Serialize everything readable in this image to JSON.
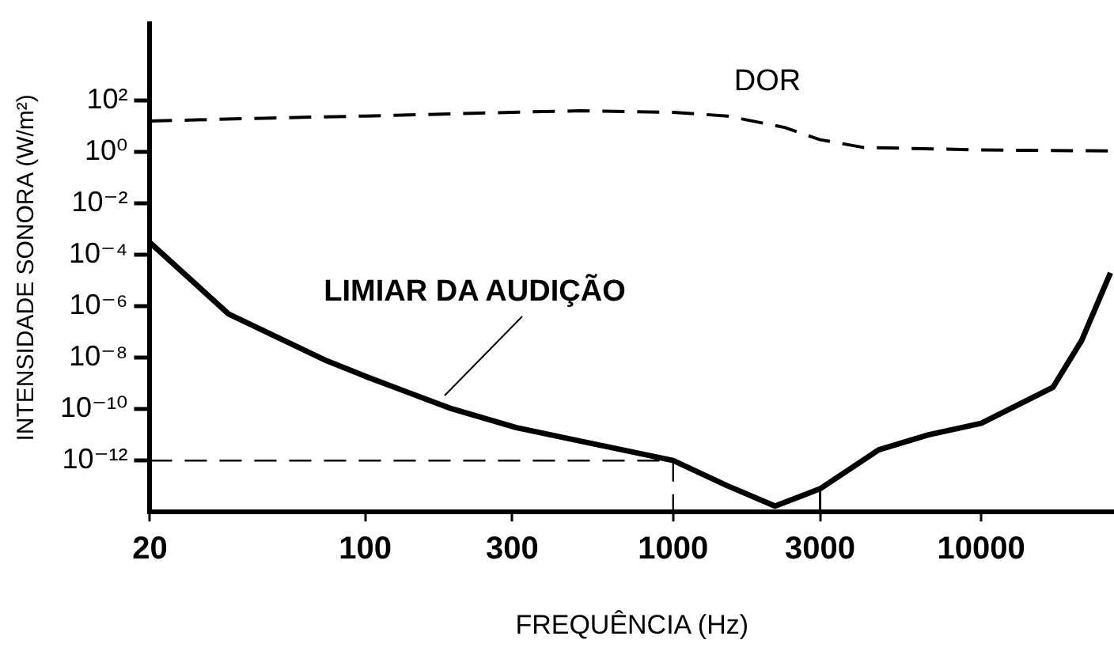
{
  "chart_data": {
    "type": "line",
    "xlabel": "FREQUÊNCIA (Hz)",
    "ylabel": "INTENSIDADE SONORA (W/m²)",
    "log": "xy",
    "grid": false,
    "legend": false,
    "marker": "none",
    "xlim": [
      20,
      27000
    ],
    "xticks": [
      20,
      100,
      300,
      1000,
      3000,
      10000
    ],
    "ylim": [
      1e-14,
      100000
    ],
    "yticks": [
      {
        "value": 1e-12,
        "label": "10⁻¹²"
      },
      {
        "value": 1e-10,
        "label": "10⁻¹⁰"
      },
      {
        "value": 1e-08,
        "label": "10⁻⁸"
      },
      {
        "value": 1e-06,
        "label": "10⁻⁶"
      },
      {
        "value": 0.0001,
        "label": "10⁻⁴"
      },
      {
        "value": 0.01,
        "label": "10⁻²"
      },
      {
        "value": 1,
        "label": "10⁰"
      },
      {
        "value": 100,
        "label": "10²"
      }
    ],
    "series": [
      {
        "name": "DOR",
        "color": "#000000",
        "line_style": "dashed",
        "x": [
          20,
          50,
          100,
          300,
          500,
          1000,
          1500,
          2300,
          3000,
          4150,
          10000,
          27000
        ],
        "values": [
          16,
          21,
          25,
          35,
          40,
          35,
          25,
          9,
          3,
          1.5,
          1.2,
          1.1
        ]
      },
      {
        "name": "LIMIAR DA AUDIÇÃO",
        "color": "#000000",
        "line_style": "solid",
        "x": [
          20,
          36,
          75,
          100,
          188,
          310,
          1000,
          1486,
          2142,
          3000,
          4650,
          6750,
          10000,
          17100,
          21200,
          26300
        ],
        "values": [
          0.0003,
          5e-07,
          7.6e-09,
          1.9e-09,
          1.1e-10,
          1.9e-11,
          1e-12,
          1.1e-13,
          1.7e-14,
          8e-14,
          2.6e-12,
          1e-11,
          2.8e-11,
          7e-10,
          4.7e-08,
          2e-05
        ]
      },
      {
        "color": "#000000",
        "line_style": "dashed",
        "x": [
          20,
          1000,
          1000
        ],
        "values": [
          1e-12,
          1e-12,
          1e-14
        ]
      },
      {
        "color": "#000000",
        "line_style": "solid",
        "x": [
          3000,
          3000
        ],
        "values": [
          1e-14,
          8e-14
        ]
      }
    ]
  }
}
